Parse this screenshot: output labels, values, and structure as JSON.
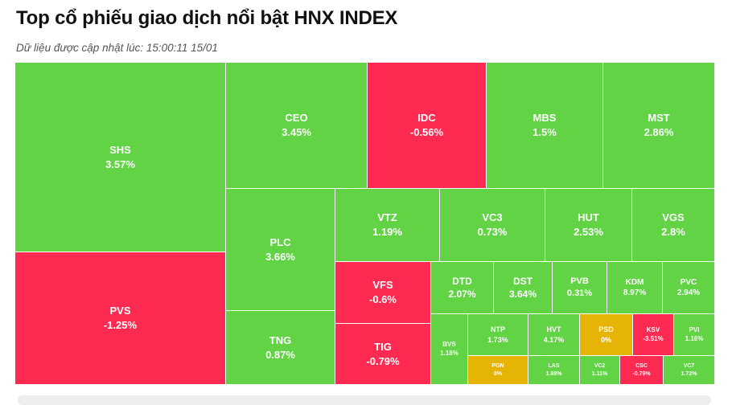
{
  "header": {
    "title": "Top cổ phiếu giao dịch nổi bật HNX INDEX",
    "subtitle": "Dữ liệu được cập nhật lúc: 15:00:11 15/01"
  },
  "colors": {
    "up": "#61d345",
    "down": "#fe2a51",
    "flat": "#e5b405"
  },
  "chart_data": {
    "type": "treemap",
    "title": "Top cổ phiếu giao dịch nổi bật HNX INDEX",
    "series": [
      {
        "symbol": "SHS",
        "change": "3.57%",
        "status": "up"
      },
      {
        "symbol": "PVS",
        "change": "-1.25%",
        "status": "down"
      },
      {
        "symbol": "CEO",
        "change": "3.45%",
        "status": "up"
      },
      {
        "symbol": "IDC",
        "change": "-0.56%",
        "status": "down"
      },
      {
        "symbol": "MBS",
        "change": "1.5%",
        "status": "up"
      },
      {
        "symbol": "MST",
        "change": "2.86%",
        "status": "up"
      },
      {
        "symbol": "PLC",
        "change": "3.66%",
        "status": "up"
      },
      {
        "symbol": "TNG",
        "change": "0.87%",
        "status": "up"
      },
      {
        "symbol": "VTZ",
        "change": "1.19%",
        "status": "up"
      },
      {
        "symbol": "VC3",
        "change": "0.73%",
        "status": "up"
      },
      {
        "symbol": "HUT",
        "change": "2.53%",
        "status": "up"
      },
      {
        "symbol": "VGS",
        "change": "2.8%",
        "status": "up"
      },
      {
        "symbol": "VFS",
        "change": "-0.6%",
        "status": "down"
      },
      {
        "symbol": "TIG",
        "change": "-0.79%",
        "status": "down"
      },
      {
        "symbol": "DTD",
        "change": "2.07%",
        "status": "up"
      },
      {
        "symbol": "DST",
        "change": "3.64%",
        "status": "up"
      },
      {
        "symbol": "PVB",
        "change": "0.31%",
        "status": "up"
      },
      {
        "symbol": "KDM",
        "change": "8.97%",
        "status": "up"
      },
      {
        "symbol": "PVC",
        "change": "2.94%",
        "status": "up"
      },
      {
        "symbol": "BVS",
        "change": "1.18%",
        "status": "up"
      },
      {
        "symbol": "NTP",
        "change": "1.73%",
        "status": "up"
      },
      {
        "symbol": "HVT",
        "change": "4.17%",
        "status": "up"
      },
      {
        "symbol": "PSD",
        "change": "0%",
        "status": "flat"
      },
      {
        "symbol": "KSV",
        "change": "-3.51%",
        "status": "down"
      },
      {
        "symbol": "PVI",
        "change": "1.16%",
        "status": "up"
      },
      {
        "symbol": "PGN",
        "change": "0%",
        "status": "flat"
      },
      {
        "symbol": "LAS",
        "change": "1.88%",
        "status": "up"
      },
      {
        "symbol": "VC2",
        "change": "1.11%",
        "status": "up"
      },
      {
        "symbol": "CSC",
        "change": "-0.79%",
        "status": "down"
      },
      {
        "symbol": "VC7",
        "change": "1.72%",
        "status": "up"
      }
    ]
  }
}
